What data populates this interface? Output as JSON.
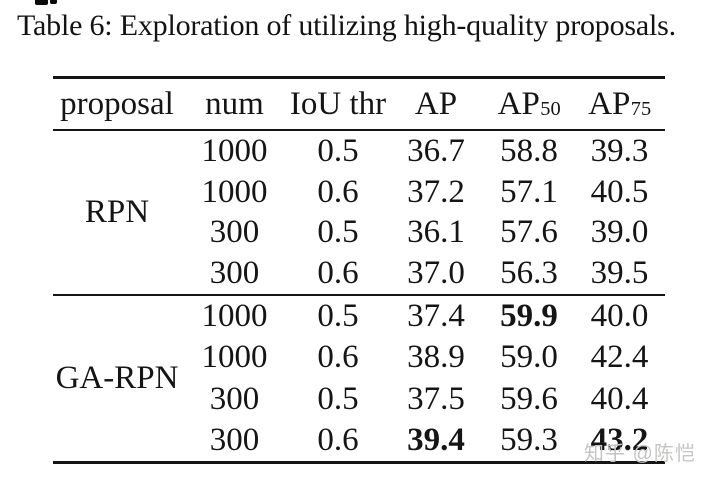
{
  "title": "Table 6: Exploration of utilizing high-quality proposals.",
  "watermark": "知乎 @陈恺",
  "colors": {
    "background": "#ffffff",
    "text": "#151515",
    "rule": "#151515",
    "watermark": "#c6c5c3"
  },
  "table": {
    "headers": [
      {
        "text": "proposal"
      },
      {
        "text": "num"
      },
      {
        "text": "IoU thr"
      },
      {
        "text": "AP"
      },
      {
        "text": "AP",
        "sub": "50"
      },
      {
        "text": "AP",
        "sub": "75"
      }
    ],
    "groups": [
      {
        "proposal": "RPN",
        "rows": [
          [
            {
              "v": "1000"
            },
            {
              "v": "0.5"
            },
            {
              "v": "36.7"
            },
            {
              "v": "58.8"
            },
            {
              "v": "39.3"
            }
          ],
          [
            {
              "v": "1000"
            },
            {
              "v": "0.6"
            },
            {
              "v": "37.2"
            },
            {
              "v": "57.1"
            },
            {
              "v": "40.5"
            }
          ],
          [
            {
              "v": "300"
            },
            {
              "v": "0.5"
            },
            {
              "v": "36.1"
            },
            {
              "v": "57.6"
            },
            {
              "v": "39.0"
            }
          ],
          [
            {
              "v": "300"
            },
            {
              "v": "0.6"
            },
            {
              "v": "37.0"
            },
            {
              "v": "56.3"
            },
            {
              "v": "39.5"
            }
          ]
        ]
      },
      {
        "proposal": "GA-RPN",
        "rows": [
          [
            {
              "v": "1000"
            },
            {
              "v": "0.5"
            },
            {
              "v": "37.4"
            },
            {
              "v": "59.9",
              "bold": true
            },
            {
              "v": "40.0"
            }
          ],
          [
            {
              "v": "1000"
            },
            {
              "v": "0.6"
            },
            {
              "v": "38.9"
            },
            {
              "v": "59.0"
            },
            {
              "v": "42.4"
            }
          ],
          [
            {
              "v": "300"
            },
            {
              "v": "0.5"
            },
            {
              "v": "37.5"
            },
            {
              "v": "59.6"
            },
            {
              "v": "40.4"
            }
          ],
          [
            {
              "v": "300"
            },
            {
              "v": "0.6"
            },
            {
              "v": "39.4",
              "bold": true
            },
            {
              "v": "59.3"
            },
            {
              "v": "43.2",
              "bold": true
            }
          ]
        ]
      }
    ]
  }
}
